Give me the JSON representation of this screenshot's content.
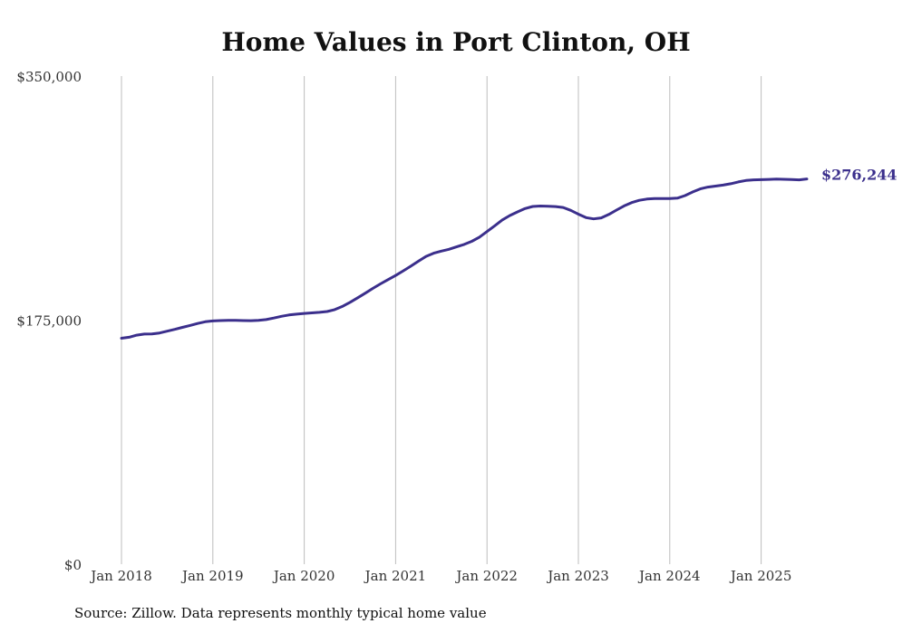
{
  "chart_data": {
    "type": "line",
    "title": "Home Values in Port Clinton, OH",
    "xlabel": "",
    "ylabel": "",
    "x_start": "2018-01",
    "x_ticks": [
      "Jan 2018",
      "Jan 2019",
      "Jan 2020",
      "Jan 2021",
      "Jan 2022",
      "Jan 2023",
      "Jan 2024",
      "Jan 2025"
    ],
    "y_ticks": [
      "$0",
      "$175,000",
      "$350,000"
    ],
    "ylim": [
      0,
      350000
    ],
    "grid": "vertical",
    "line_color": "#3b2f8c",
    "end_label": "$276,244",
    "series": [
      {
        "values": [
          162000,
          162700,
          164200,
          165000,
          165100,
          165800,
          167100,
          168400,
          169800,
          171200,
          172600,
          173800,
          174400,
          174700,
          174800,
          174800,
          174700,
          174600,
          174800,
          175400,
          176500,
          177700,
          178700,
          179300,
          179800,
          180200,
          180600,
          181200,
          182500,
          184800,
          187700,
          191000,
          194300,
          197700,
          201000,
          204000,
          207000,
          210300,
          213700,
          217300,
          220700,
          223000,
          224500,
          225800,
          227500,
          229300,
          231500,
          234500,
          238500,
          242600,
          246800,
          250000,
          252600,
          255000,
          256500,
          256800,
          256600,
          256400,
          255800,
          253700,
          251000,
          248500,
          247600,
          248300,
          250800,
          253900,
          256900,
          259300,
          260900,
          261800,
          262200,
          262200,
          262200,
          262500,
          264300,
          266900,
          269100,
          270400,
          271100,
          271800,
          272800,
          274100,
          275100,
          275600,
          275700,
          275900,
          276100,
          276000,
          275800,
          275600,
          276244
        ]
      }
    ]
  },
  "footer": {
    "source": "Source: Zillow. Data represents monthly typical home value"
  }
}
